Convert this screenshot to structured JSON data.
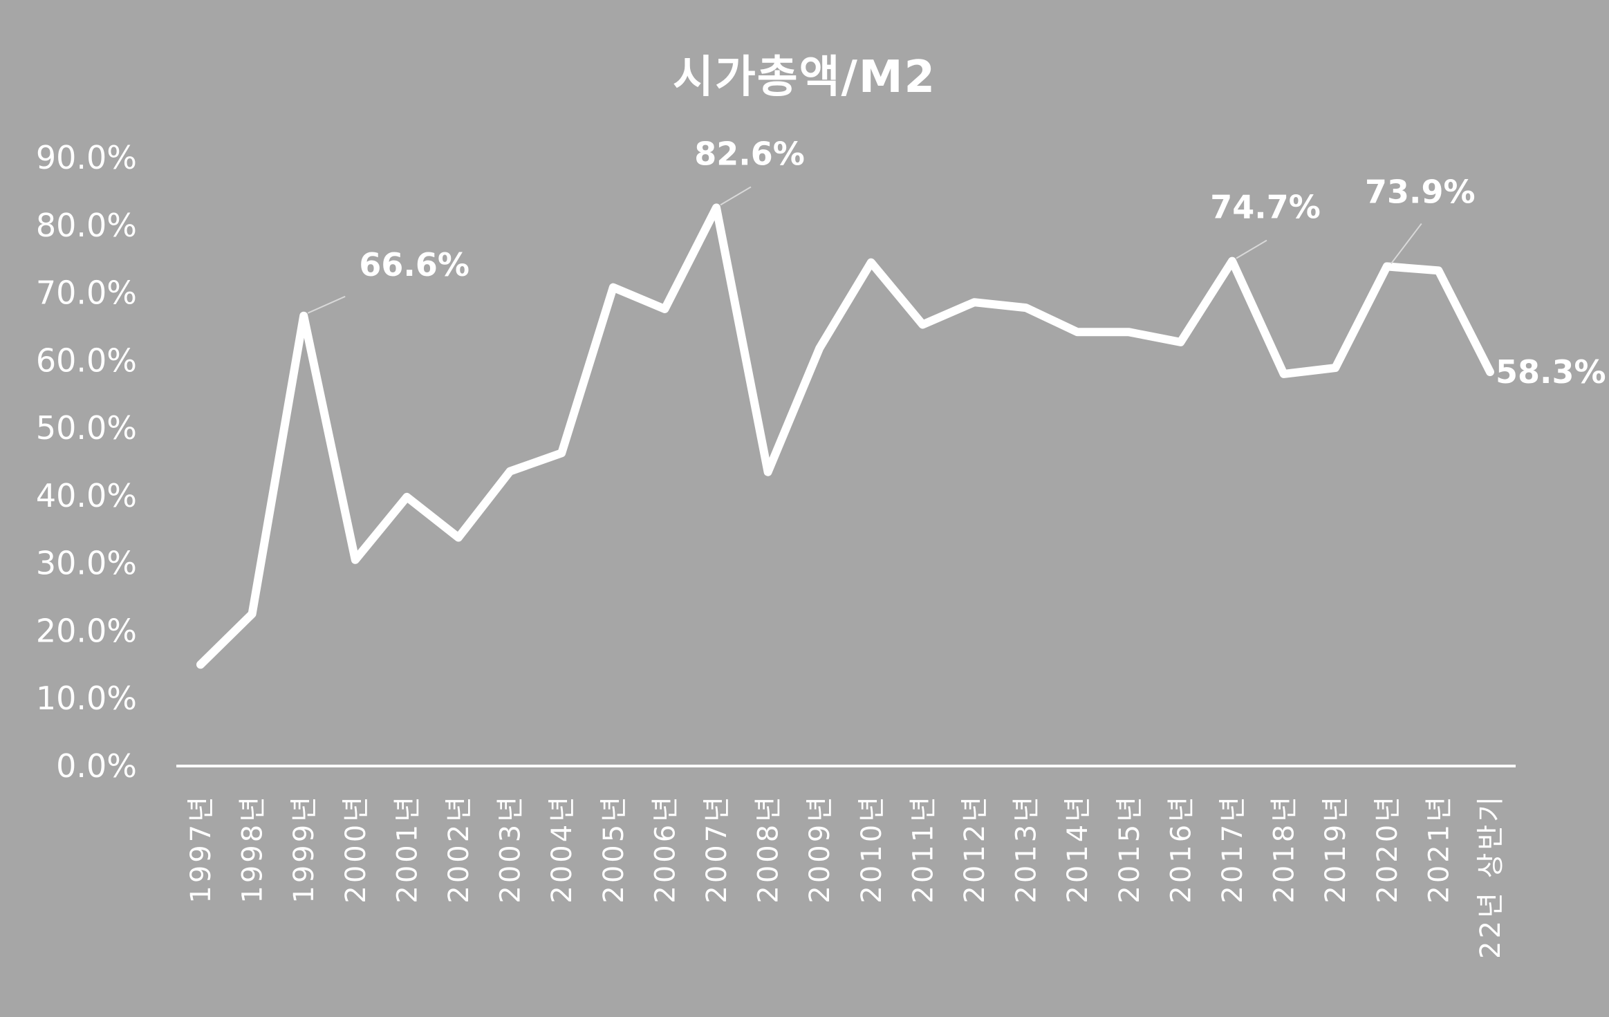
{
  "chart_data": {
    "type": "line",
    "title": "시가총액/M2",
    "categories": [
      "1997년",
      "1998년",
      "1999년",
      "2000년",
      "2001년",
      "2002년",
      "2003년",
      "2004년",
      "2005년",
      "2006년",
      "2007년",
      "2008년",
      "2009년",
      "2010년",
      "2011년",
      "2012년",
      "2013년",
      "2014년",
      "2015년",
      "2016년",
      "2017년",
      "2018년",
      "2019년",
      "2020년",
      "2021년",
      "22년 상반기"
    ],
    "series": [
      {
        "values": [
          15.0,
          22.5,
          66.6,
          30.5,
          39.8,
          33.8,
          43.6,
          46.3,
          70.8,
          67.6,
          82.6,
          43.5,
          61.8,
          74.5,
          65.3,
          68.6,
          67.8,
          64.2,
          64.2,
          62.7,
          74.7,
          58.0,
          58.9,
          73.9,
          73.3,
          58.3
        ]
      }
    ],
    "ylim": [
      0,
      90
    ],
    "yticks": [
      "0.0%",
      "10.0%",
      "20.0%",
      "30.0%",
      "40.0%",
      "50.0%",
      "60.0%",
      "70.0%",
      "80.0%",
      "90.0%"
    ],
    "data_labels": [
      {
        "index": 2,
        "text": "66.6%"
      },
      {
        "index": 10,
        "text": "82.6%"
      },
      {
        "index": 20,
        "text": "74.7%"
      },
      {
        "index": 23,
        "text": "73.9%"
      },
      {
        "index": 25,
        "text": "58.3%"
      }
    ],
    "grid": false,
    "drop_lines": true,
    "line_color": "#ffffff",
    "background": "#a6a6a6"
  }
}
